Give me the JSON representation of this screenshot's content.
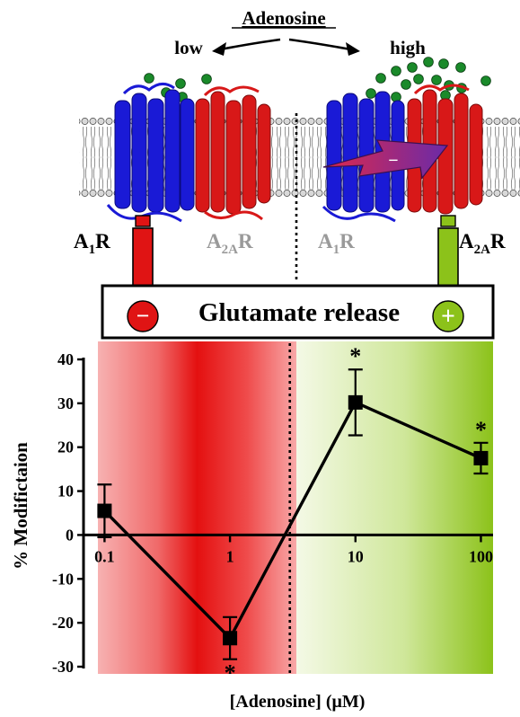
{
  "header": {
    "title": "Adenosine",
    "low": "low",
    "high": "high"
  },
  "receptors": {
    "left_active": {
      "main": "A",
      "sub": "1",
      "suffix": "R"
    },
    "left_inactive": {
      "main": "A",
      "sub": "2A",
      "suffix": "R"
    },
    "right_inactive": {
      "main": "A",
      "sub": "1",
      "suffix": "R"
    },
    "right_active": {
      "main": "A",
      "sub": "2A",
      "suffix": "R"
    },
    "interaction_sign": "−"
  },
  "release_box": {
    "label": "Glutamate release",
    "minus_symbol": "−",
    "plus_symbol": "+"
  },
  "colors": {
    "a1r_blue": "#1a1ad6",
    "a2ar_red": "#d81818",
    "inhibit_red": "#e01414",
    "facilitate_green": "#8cc21a",
    "ligand_green": "#1a8a2a",
    "inactive_gray": "#9a9a9a"
  },
  "chart_data": {
    "type": "line",
    "xlabel": "[Adenosine] (μM)",
    "ylabel": "% Modifictaion",
    "x_scale": "log",
    "xticks": [
      {
        "value": 0.1,
        "label": "0.1"
      },
      {
        "value": 1,
        "label": "1"
      },
      {
        "value": 10,
        "label": "10"
      },
      {
        "value": 100,
        "label": "100"
      }
    ],
    "yticks": [
      {
        "value": 40,
        "label": "40"
      },
      {
        "value": 30,
        "label": "30"
      },
      {
        "value": 20,
        "label": "20"
      },
      {
        "value": 10,
        "label": "10"
      },
      {
        "value": 0,
        "label": "0"
      },
      {
        "value": -10,
        "label": "-10"
      },
      {
        "value": -20,
        "label": "-20"
      },
      {
        "value": -30,
        "label": "-30"
      }
    ],
    "ylim": [
      -30,
      40
    ],
    "x_range": [
      0.068,
      125
    ],
    "threshold_x": 3,
    "points": [
      {
        "x": 0.1,
        "y": 5.5,
        "err": 6,
        "significant": false
      },
      {
        "x": 1,
        "y": -23.5,
        "err": 4.8,
        "significant": true,
        "marker_pos": "below"
      },
      {
        "x": 10,
        "y": 30.2,
        "err": 7.5,
        "significant": true,
        "marker_pos": "above"
      },
      {
        "x": 100,
        "y": 17.5,
        "err": 3.5,
        "significant": true,
        "marker_pos": "above"
      }
    ],
    "significance_marker": "*"
  }
}
